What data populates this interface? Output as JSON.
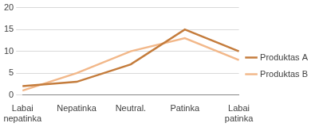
{
  "chart_data": {
    "type": "line",
    "categories": [
      "Labai nepatinka",
      "Nepatinka",
      "Neutral.",
      "Patinka",
      "Labai patinka"
    ],
    "series": [
      {
        "name": "Produktas A",
        "color": "#c47c3c",
        "values": [
          2,
          3,
          7,
          15,
          10
        ]
      },
      {
        "name": "Produktas B",
        "color": "#f2b88a",
        "values": [
          1,
          5,
          10,
          13,
          8
        ]
      }
    ],
    "ylim": [
      0,
      20
    ],
    "yticks": [
      0,
      5,
      10,
      15,
      20
    ],
    "grid": true,
    "legend": "right"
  }
}
